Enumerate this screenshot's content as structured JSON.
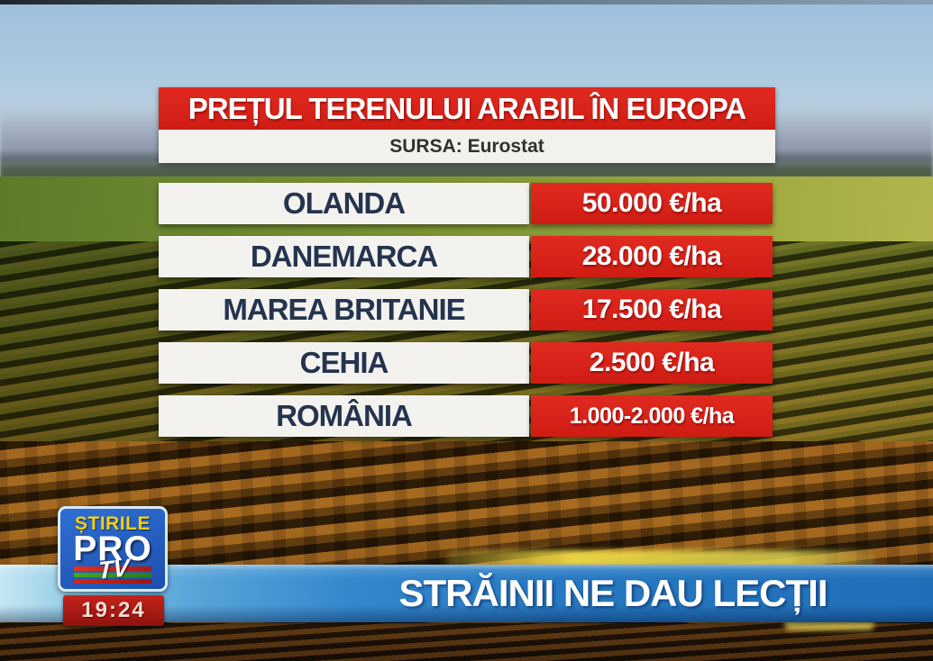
{
  "title_panel": {
    "title": "PREȚUL TERENULUI ARABIL ÎN EUROPA",
    "source": "SURSA: Eurostat"
  },
  "table": {
    "rows": [
      {
        "country": "OLANDA",
        "price": "50.000 €/ha"
      },
      {
        "country": "DANEMARCA",
        "price": "28.000 €/ha"
      },
      {
        "country": "MAREA BRITANIE",
        "price": "17.500 €/ha"
      },
      {
        "country": "CEHIA",
        "price": "2.500 €/ha"
      },
      {
        "country": "ROMÂNIA",
        "price": "1.000-2.000 €/ha"
      }
    ]
  },
  "ticker": {
    "headline": "STRĂINII NE DAU LECȚII"
  },
  "logo": {
    "stirile": "ȘTIRILE",
    "pro": "PRO",
    "tv": "TV",
    "time": "19:24"
  },
  "colors": {
    "accent_red": "#d81d14",
    "panel_white": "#f3f2ef",
    "country_navy": "#24344e",
    "banner_blue": "#2b7ec4",
    "logo_blue": "#2561c8",
    "logo_yellow": "#f2d016",
    "stripe_green": "#3a9a22"
  },
  "chart_data": {
    "type": "table",
    "title": "PREȚUL TERENULUI ARABIL ÎN EUROPA",
    "source": "SURSA: Eurostat",
    "unit": "€/ha",
    "categories": [
      "OLANDA",
      "DANEMARCA",
      "MAREA BRITANIE",
      "CEHIA",
      "ROMÂNIA"
    ],
    "values": [
      50000,
      28000,
      17500,
      2500,
      "1000-2000"
    ],
    "values_text": [
      "50.000 €/ha",
      "28.000 €/ha",
      "17.500 €/ha",
      "2.500 €/ha",
      "1.000-2.000 €/ha"
    ]
  }
}
